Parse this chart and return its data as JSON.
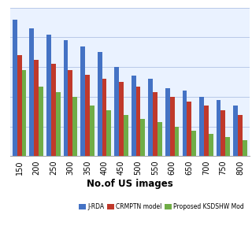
{
  "categories": [
    "150",
    "200",
    "250",
    "300",
    "350",
    "400",
    "450",
    "500",
    "550",
    "600",
    "650",
    "700",
    "750",
    "800"
  ],
  "jrda": [
    92,
    86,
    82,
    78,
    74,
    70,
    60,
    54,
    52,
    46,
    44,
    40,
    38,
    34
  ],
  "crmptn": [
    68,
    65,
    62,
    58,
    55,
    52,
    50,
    47,
    43,
    40,
    37,
    34,
    31,
    28
  ],
  "proposed": [
    58,
    47,
    43,
    40,
    34,
    31,
    28,
    25,
    23,
    20,
    17,
    15,
    13,
    11
  ],
  "color_jrda": "#4472C4",
  "color_crmptn": "#C0392B",
  "color_proposed": "#70AD47",
  "xlabel": "No.of US images",
  "label_jrda": "J-RDA",
  "label_crmptn": "CRMPTN model",
  "label_proposed": "Proposed KSDSHW Mod",
  "bg_color": "#EAF2FF",
  "grid_color": "#B8C8E8",
  "ylim": [
    0,
    100
  ],
  "yticks": [
    0,
    20,
    40,
    60,
    80,
    100
  ]
}
